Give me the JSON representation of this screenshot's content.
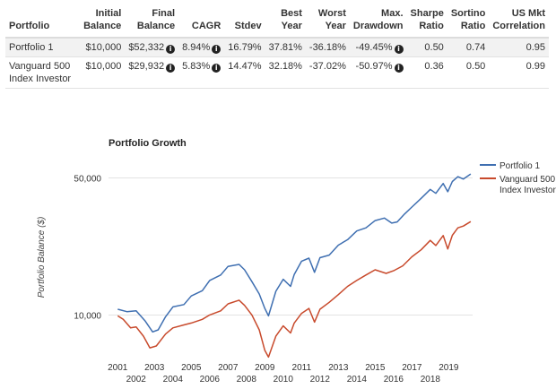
{
  "table": {
    "headers": [
      "Portfolio",
      "Initial\nBalance",
      "Final\nBalance",
      "CAGR",
      "Stdev",
      "Best\nYear",
      "Worst\nYear",
      "Max.\nDrawdown",
      "Sharpe\nRatio",
      "Sortino\nRatio",
      "US Mkt\nCorrelation"
    ],
    "rows": [
      {
        "portfolio": "Portfolio 1",
        "initial_balance": "$10,000",
        "final_balance": "$52,332",
        "cagr": "8.94%",
        "stdev": "16.79%",
        "best_year": "37.81%",
        "worst_year": "-36.18%",
        "max_drawdown": "-49.45%",
        "sharpe": "0.50",
        "sortino": "0.74",
        "correlation": "0.95"
      },
      {
        "portfolio": "Vanguard 500 Index Investor",
        "initial_balance": "$10,000",
        "final_balance": "$29,932",
        "cagr": "5.83%",
        "stdev": "14.47%",
        "best_year": "32.18%",
        "worst_year": "-37.02%",
        "max_drawdown": "-50.97%",
        "sharpe": "0.36",
        "sortino": "0.50",
        "correlation": "0.99"
      }
    ]
  },
  "chart_data": {
    "type": "line",
    "title": "Portfolio Growth",
    "xlabel": "",
    "ylabel": "Portfolio Balance ($)",
    "y_scale": "log",
    "ylim": [
      6000,
      62000
    ],
    "xlim": [
      2000.5,
      2020.3
    ],
    "yticks": [
      10000,
      50000
    ],
    "ytick_labels": [
      "10,000",
      "50,000"
    ],
    "xtick_labels_top": [
      "2001",
      "2003",
      "2005",
      "2007",
      "2009",
      "2011",
      "2013",
      "2015",
      "2017",
      "2019"
    ],
    "xtick_labels_bottom": [
      "2002",
      "2004",
      "2006",
      "2008",
      "2010",
      "2012",
      "2014",
      "2016",
      "2018"
    ],
    "legend_position": "top-right",
    "series": [
      {
        "name": "Portfolio 1",
        "color": "#3f6fb1",
        "x": [
          2001.0,
          2001.5,
          2002.0,
          2002.5,
          2002.9,
          2003.2,
          2003.6,
          2004.0,
          2004.6,
          2005.0,
          2005.6,
          2006.0,
          2006.6,
          2007.0,
          2007.6,
          2007.9,
          2008.3,
          2008.7,
          2009.0,
          2009.2,
          2009.6,
          2010.0,
          2010.4,
          2010.6,
          2011.0,
          2011.4,
          2011.7,
          2012.0,
          2012.5,
          2013.0,
          2013.5,
          2014.0,
          2014.5,
          2015.0,
          2015.5,
          2015.9,
          2016.2,
          2016.6,
          2017.0,
          2017.5,
          2018.0,
          2018.3,
          2018.7,
          2018.95,
          2019.2,
          2019.5,
          2019.8,
          2020.2
        ],
        "y": [
          10700,
          10400,
          10500,
          9300,
          8200,
          8400,
          9800,
          11000,
          11300,
          12500,
          13300,
          15000,
          16000,
          17700,
          18100,
          17000,
          14800,
          12800,
          10800,
          9900,
          13200,
          15200,
          14000,
          16100,
          18800,
          19500,
          16500,
          19600,
          20200,
          22700,
          24200,
          26800,
          27800,
          30300,
          31200,
          29400,
          29800,
          32700,
          35500,
          39300,
          43700,
          41700,
          46800,
          42500,
          47900,
          50700,
          49300,
          52332
        ]
      },
      {
        "name": "Vanguard 500 Index Investor",
        "color": "#c84a2c",
        "x": [
          2001.0,
          2001.3,
          2001.7,
          2002.0,
          2002.4,
          2002.75,
          2003.1,
          2003.6,
          2004.0,
          2004.6,
          2005.0,
          2005.6,
          2006.0,
          2006.6,
          2007.0,
          2007.6,
          2007.9,
          2008.3,
          2008.7,
          2009.0,
          2009.2,
          2009.6,
          2010.0,
          2010.4,
          2010.6,
          2011.0,
          2011.4,
          2011.7,
          2012.0,
          2012.5,
          2013.0,
          2013.5,
          2014.0,
          2014.5,
          2015.0,
          2015.6,
          2016.0,
          2016.5,
          2017.0,
          2017.5,
          2018.0,
          2018.3,
          2018.7,
          2018.95,
          2019.2,
          2019.5,
          2019.8,
          2020.2
        ],
        "y": [
          9900,
          9500,
          8600,
          8700,
          7800,
          6800,
          6950,
          8000,
          8600,
          8900,
          9100,
          9500,
          10000,
          10500,
          11400,
          11900,
          11200,
          10000,
          8400,
          6600,
          6100,
          7800,
          8800,
          8100,
          9100,
          10200,
          10800,
          9200,
          10700,
          11600,
          12700,
          14000,
          15000,
          16000,
          17000,
          16300,
          16800,
          17800,
          19800,
          21500,
          24000,
          22600,
          25400,
          21700,
          25500,
          27800,
          28400,
          29932
        ]
      }
    ]
  }
}
